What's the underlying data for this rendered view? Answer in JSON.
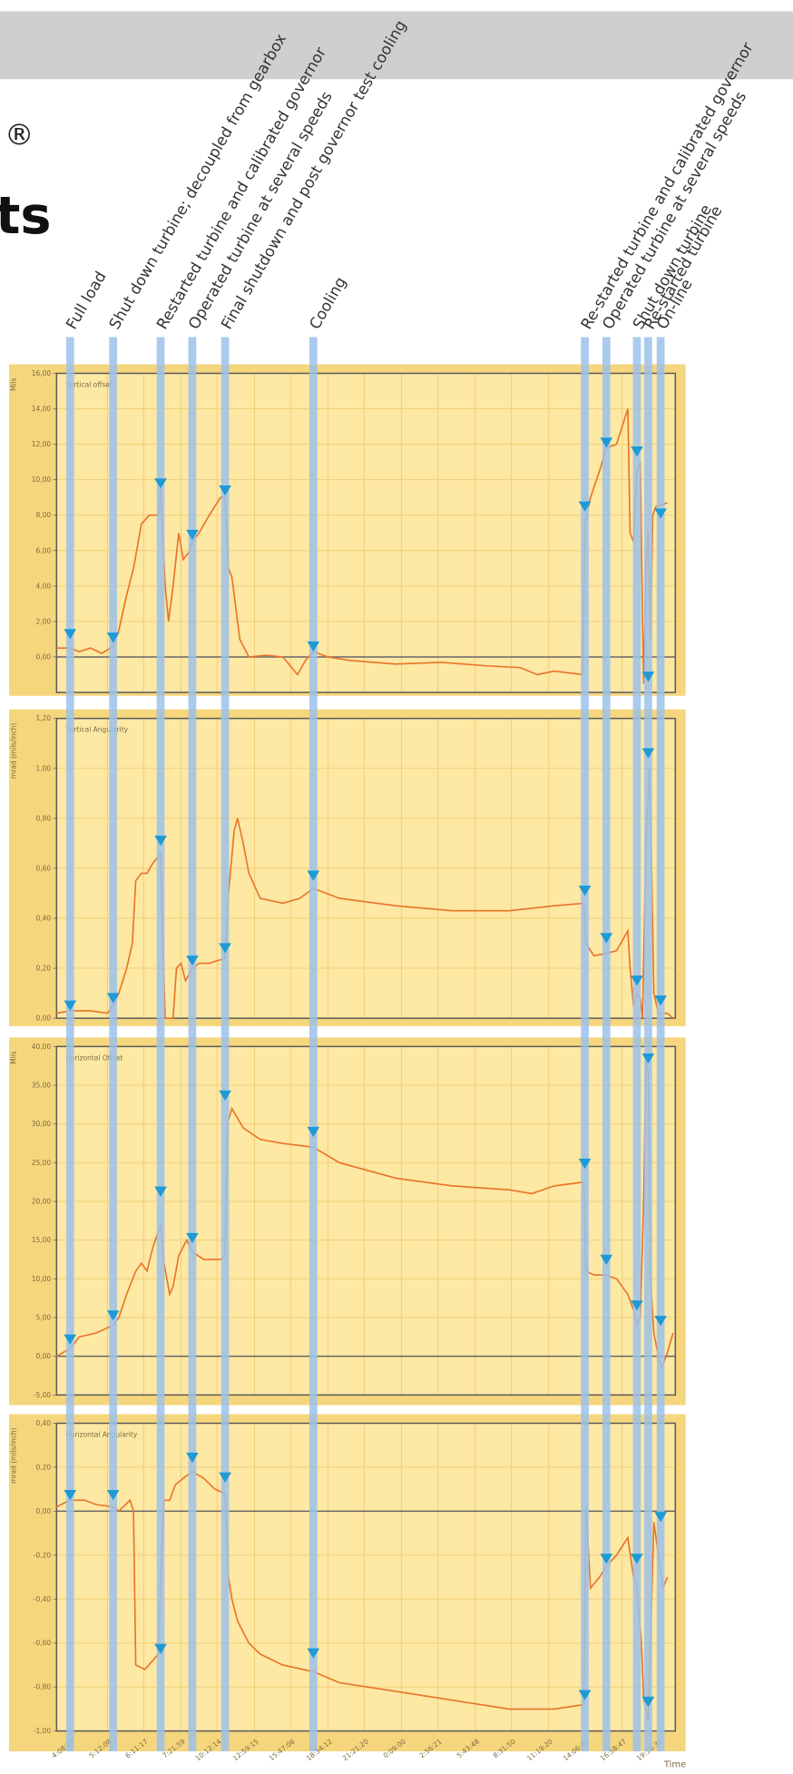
{
  "header": {
    "symbol": "®",
    "title_fragment": "ts"
  },
  "events": {
    "x": [
      12,
      50,
      92,
      120,
      149,
      227,
      467,
      486,
      513,
      523,
      534
    ],
    "labels": [
      "Full load",
      "Shut down turbine; decoupled from gearbox",
      "Restarted turbine and calibrated governor",
      "Operated turbine at several speeds",
      "Final shutdown and post governor test cooling",
      "Cooling",
      "Re-started turbine and calibrated governor",
      "Operated turbine at several speeds",
      "Shut down turbine",
      "Re-started turbine",
      "On-line"
    ]
  },
  "chart_data": [
    {
      "type": "line",
      "title": "Vertical offset",
      "y_label": "Mils",
      "color": "#e8742a",
      "grid": true,
      "xlim": [
        0,
        547
      ],
      "ylim": [
        -2,
        16
      ],
      "yticks": [
        {
          "value": 0,
          "label": "0,00"
        },
        {
          "value": 2,
          "label": "2,00"
        },
        {
          "value": 4,
          "label": "4,00"
        },
        {
          "value": 6,
          "label": "6,00"
        },
        {
          "value": 8,
          "label": "8,00"
        },
        {
          "value": 10,
          "label": "10,00"
        },
        {
          "value": 12,
          "label": "12,00"
        },
        {
          "value": 14,
          "label": "14,00"
        },
        {
          "value": 16,
          "label": "16,00"
        }
      ],
      "x": [
        0,
        12,
        20,
        30,
        40,
        50,
        55,
        62,
        68,
        75,
        82,
        90,
        92,
        96,
        99,
        103,
        108,
        112,
        118,
        120,
        126,
        135,
        145,
        149,
        152,
        155,
        158,
        162,
        170,
        185,
        200,
        213,
        220,
        227,
        240,
        260,
        300,
        340,
        380,
        410,
        425,
        440,
        465,
        467,
        472,
        480,
        486,
        495,
        500,
        505,
        507,
        510,
        513,
        516,
        518,
        519,
        521,
        523,
        525,
        527,
        530,
        540
      ],
      "values": [
        0.5,
        0.5,
        0.3,
        0.5,
        0.2,
        0.6,
        1.5,
        3.5,
        5,
        7.5,
        8,
        8,
        9.5,
        4,
        2,
        4,
        7,
        5.5,
        6,
        6.5,
        7,
        8,
        9,
        9,
        5,
        4.5,
        3,
        1,
        0,
        0.1,
        0,
        -1,
        -0.2,
        0.3,
        0,
        -0.2,
        -0.4,
        -0.3,
        -0.5,
        -0.6,
        -1,
        -0.8,
        -1,
        7.5,
        9,
        10.5,
        11.8,
        12,
        13,
        14,
        7,
        6.5,
        10.5,
        11,
        2,
        -1.5,
        5,
        7,
        1,
        8,
        8.5,
        8.7
      ],
      "markers": [
        1,
        0.8,
        9.5,
        6.6,
        9.1,
        0.3,
        8.2,
        11.8,
        11.3,
        -1.4,
        7.8
      ]
    },
    {
      "type": "line",
      "title": "Vertical Angularity",
      "y_label": "mrad (mils/inch)",
      "color": "#e8742a",
      "grid": true,
      "xlim": [
        0,
        547
      ],
      "ylim": [
        0,
        1.2
      ],
      "yticks": [
        {
          "value": 0,
          "label": "0,00"
        },
        {
          "value": 0.2,
          "label": "0,20"
        },
        {
          "value": 0.4,
          "label": "0,40"
        },
        {
          "value": 0.6,
          "label": "0,60"
        },
        {
          "value": 0.8,
          "label": "0,80"
        },
        {
          "value": 1,
          "label": "1,00"
        },
        {
          "value": 1.2,
          "label": "1,20"
        }
      ],
      "x": [
        0,
        12,
        30,
        45,
        50,
        55,
        62,
        67,
        70,
        75,
        80,
        85,
        92,
        94,
        96,
        103,
        106,
        110,
        114,
        120,
        126,
        135,
        149,
        152,
        157,
        160,
        165,
        170,
        180,
        200,
        215,
        227,
        250,
        300,
        350,
        400,
        440,
        466,
        468,
        475,
        486,
        495,
        505,
        507,
        510,
        513,
        516,
        518,
        521,
        524,
        526,
        528,
        532,
        540,
        545
      ],
      "values": [
        0.02,
        0.03,
        0.03,
        0.02,
        0.05,
        0.1,
        0.2,
        0.3,
        0.55,
        0.58,
        0.58,
        0.62,
        0.66,
        0.3,
        0,
        0,
        0.2,
        0.22,
        0.15,
        0.2,
        0.22,
        0.22,
        0.24,
        0.5,
        0.75,
        0.8,
        0.7,
        0.58,
        0.48,
        0.46,
        0.48,
        0.52,
        0.48,
        0.45,
        0.43,
        0.43,
        0.45,
        0.46,
        0.3,
        0.25,
        0.26,
        0.27,
        0.35,
        0.2,
        0.05,
        0.1,
        0.08,
        0,
        0.7,
        1,
        0.6,
        0.1,
        0.02,
        0.02,
        0
      ],
      "markers": [
        0.03,
        0.06,
        0.69,
        0.21,
        0.26,
        0.55,
        0.49,
        0.3,
        0.13,
        1.04,
        0.05
      ]
    },
    {
      "type": "line",
      "title": "Horizontal Offset",
      "y_label": "Mils",
      "color": "#e8742a",
      "grid": true,
      "xlim": [
        0,
        547
      ],
      "ylim": [
        -5,
        40
      ],
      "yticks": [
        {
          "value": -5,
          "label": "-5,00"
        },
        {
          "value": 0,
          "label": "0,00"
        },
        {
          "value": 5,
          "label": "5,00"
        },
        {
          "value": 10,
          "label": "10,00"
        },
        {
          "value": 15,
          "label": "15,00"
        },
        {
          "value": 20,
          "label": "20,00"
        },
        {
          "value": 25,
          "label": "25,00"
        },
        {
          "value": 30,
          "label": "30,00"
        },
        {
          "value": 35,
          "label": "35,00"
        },
        {
          "value": 40,
          "label": "40,00"
        }
      ],
      "x": [
        0,
        12,
        20,
        35,
        50,
        55,
        62,
        70,
        75,
        80,
        85,
        92,
        95,
        100,
        103,
        108,
        115,
        120,
        130,
        145,
        149,
        151,
        155,
        165,
        180,
        200,
        227,
        250,
        300,
        350,
        400,
        420,
        440,
        466,
        468,
        475,
        486,
        495,
        505,
        510,
        513,
        516,
        519,
        521,
        523,
        525,
        528,
        532,
        535,
        540,
        545
      ],
      "values": [
        0,
        1,
        2.5,
        3,
        4,
        5,
        8,
        11,
        12,
        11,
        14,
        17,
        12,
        8,
        9,
        13,
        15,
        13.5,
        12.5,
        12.5,
        13,
        30,
        32,
        29.5,
        28,
        27.5,
        27,
        25,
        23,
        22,
        21.5,
        21,
        22,
        22.5,
        11,
        10.5,
        10.5,
        10,
        8,
        6,
        4,
        5,
        20,
        38,
        37,
        10,
        3,
        0,
        -1.5,
        0.5,
        3
      ],
      "markers": [
        1.5,
        4.6,
        20.6,
        14.6,
        33,
        28.3,
        24.2,
        11.8,
        5.9,
        37.8,
        3.9
      ]
    },
    {
      "type": "line",
      "title": "Horizontal Angularity",
      "y_label": "mrad (mils/inch)",
      "x_label": "Time",
      "color": "#e8742a",
      "grid": true,
      "xlim": [
        0,
        547
      ],
      "ylim": [
        -1,
        0.4
      ],
      "yticks": [
        {
          "value": -1,
          "label": "-1,00"
        },
        {
          "value": -0.8,
          "label": "-0,80"
        },
        {
          "value": -0.6,
          "label": "-0,60"
        },
        {
          "value": -0.4,
          "label": "-0,40"
        },
        {
          "value": -0.2,
          "label": "-0,20"
        },
        {
          "value": 0,
          "label": "0,00"
        },
        {
          "value": 0.2,
          "label": "0,20"
        },
        {
          "value": 0.4,
          "label": "0,40"
        }
      ],
      "xticks": [
        {
          "value": 12,
          "label": "4:08:07"
        },
        {
          "value": 45,
          "label": "5:12:08"
        },
        {
          "value": 77,
          "label": "6:11:17"
        },
        {
          "value": 110,
          "label": "7:21:59"
        },
        {
          "value": 142,
          "label": "10:12:14"
        },
        {
          "value": 175,
          "label": "12:59:15"
        },
        {
          "value": 207,
          "label": "15:47:06"
        },
        {
          "value": 240,
          "label": "18:34:12"
        },
        {
          "value": 272,
          "label": "21:21:20"
        },
        {
          "value": 305,
          "label": "0:09:00"
        },
        {
          "value": 337,
          "label": "2:56:21"
        },
        {
          "value": 370,
          "label": "5:43:48"
        },
        {
          "value": 402,
          "label": "8:31:50"
        },
        {
          "value": 435,
          "label": "11:19:20"
        },
        {
          "value": 467,
          "label": "14:06:31"
        },
        {
          "value": 500,
          "label": "16:58:47"
        },
        {
          "value": 532,
          "label": "19:50:36"
        }
      ],
      "x": [
        0,
        12,
        25,
        35,
        50,
        55,
        65,
        68,
        70,
        78,
        85,
        90,
        92,
        95,
        100,
        105,
        112,
        120,
        130,
        140,
        149,
        152,
        155,
        160,
        170,
        180,
        200,
        227,
        250,
        300,
        350,
        400,
        440,
        466,
        468,
        472,
        480,
        486,
        495,
        505,
        510,
        513,
        517,
        519,
        521,
        523,
        525,
        528,
        532,
        536,
        540
      ],
      "values": [
        0.02,
        0.05,
        0.05,
        0.03,
        0.02,
        0,
        0.05,
        0,
        -0.7,
        -0.72,
        -0.68,
        -0.65,
        -0.3,
        0.05,
        0.05,
        0.12,
        0.15,
        0.18,
        0.15,
        0.1,
        0.08,
        -0.3,
        -0.4,
        -0.5,
        -0.6,
        -0.65,
        -0.7,
        -0.73,
        -0.78,
        -0.82,
        -0.86,
        -0.9,
        -0.9,
        -0.88,
        0.02,
        -0.35,
        -0.3,
        -0.25,
        -0.2,
        -0.12,
        -0.3,
        -0.35,
        -0.6,
        -0.85,
        -0.9,
        -0.95,
        -0.6,
        -0.05,
        -0.2,
        -0.35,
        -0.3
      ],
      "markers": [
        0.05,
        0.05,
        -0.65,
        0.22,
        0.13,
        -0.67,
        -0.86,
        -0.24,
        -0.24,
        -0.89,
        -0.05
      ]
    }
  ]
}
